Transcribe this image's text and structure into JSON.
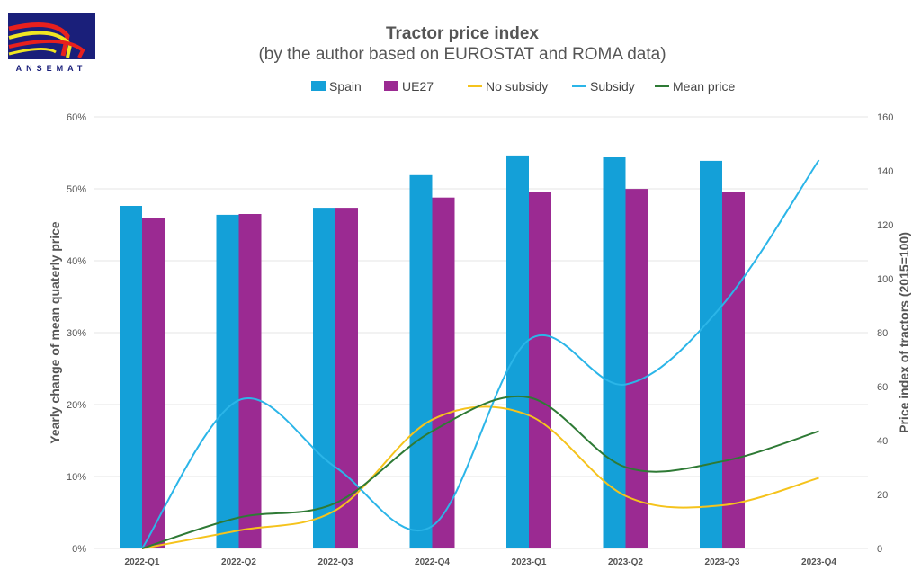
{
  "logo": {
    "text": "ANSEMAT"
  },
  "chart_data": {
    "type": "bar",
    "title": "Tractor price index",
    "subtitle": "(by the author based on EUROSTAT and ROMA data)",
    "categories": [
      "2022-Q1",
      "2022-Q2",
      "2022-Q3",
      "2022-Q4",
      "2023-Q1",
      "2023-Q2",
      "2023-Q3",
      "2023-Q4"
    ],
    "ylabel_left": "Yearly change of mean quaterly price",
    "ylabel_right": "Price index of tractors (2015=100)",
    "ylim_left": [
      0,
      60
    ],
    "yticks_left": [
      "0%",
      "10%",
      "20%",
      "30%",
      "40%",
      "50%",
      "60%"
    ],
    "ylim_right": [
      0,
      160
    ],
    "yticks_right": [
      "0",
      "20",
      "40",
      "60",
      "80",
      "100",
      "120",
      "140",
      "160"
    ],
    "grid": true,
    "legend": "top",
    "bar_series": [
      {
        "name": "Spain",
        "axis": "right",
        "color": "#14a0d8",
        "values": [
          127,
          123.7,
          126.3,
          138.4,
          145.7,
          145,
          143.7,
          null
        ]
      },
      {
        "name": "UE27",
        "axis": "right",
        "color": "#9b2a92",
        "values": [
          122.4,
          124,
          126.3,
          130.1,
          132.3,
          133.3,
          132.3,
          null
        ]
      }
    ],
    "line_series": [
      {
        "name": "No subsidy",
        "axis": "left",
        "color": "#f5c31c",
        "values": [
          0,
          2.5,
          5.3,
          17.9,
          18.5,
          7.3,
          6,
          9.8
        ]
      },
      {
        "name": "Subsidy",
        "axis": "left",
        "color": "#2bb5e8",
        "values": [
          0,
          20.6,
          11.3,
          3.1,
          29,
          22.8,
          33.8,
          54
        ]
      },
      {
        "name": "Mean price",
        "axis": "left",
        "color": "#2e7a35",
        "values": [
          0,
          4.3,
          6.3,
          16.3,
          21,
          11.3,
          12.1,
          16.3
        ]
      }
    ]
  }
}
